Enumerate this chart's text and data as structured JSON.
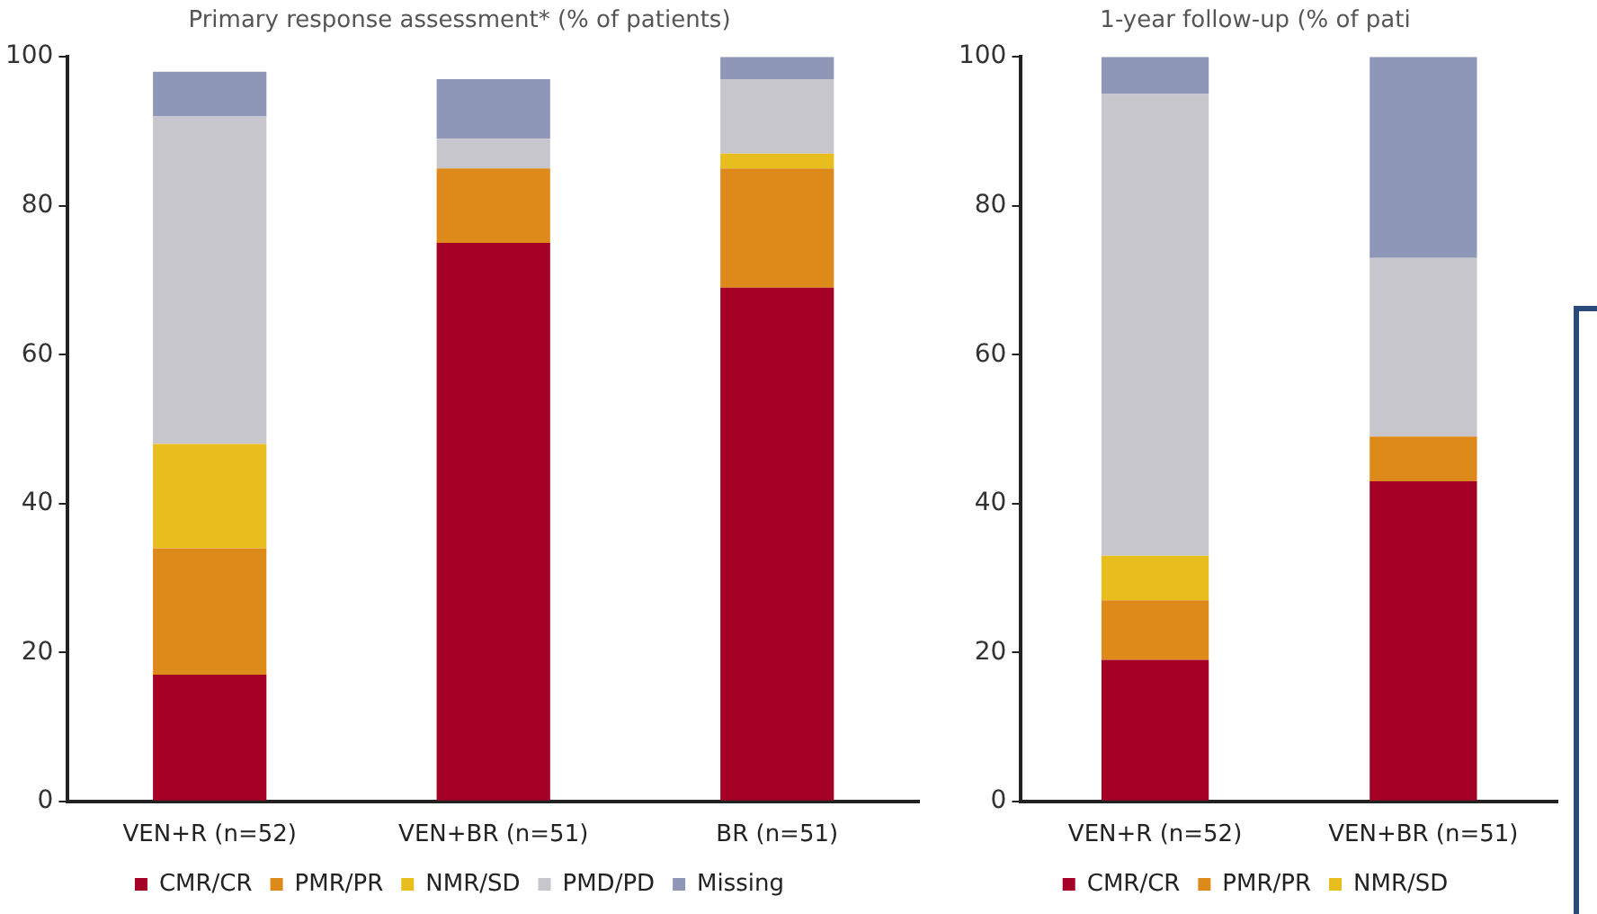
{
  "chart_data": [
    {
      "type": "bar",
      "title": "Primary response assessment* (% of patients)",
      "stacked": true,
      "categories": [
        "VEN+R (n=52)",
        "VEN+BR (n=51)",
        "BR (n=51)"
      ],
      "series": [
        {
          "name": "CMR/CR",
          "color": "#a50026",
          "values": [
            17,
            75,
            69
          ]
        },
        {
          "name": "PMR/PR",
          "color": "#dd8a1a",
          "values": [
            17,
            10,
            16
          ]
        },
        {
          "name": "NMR/SD",
          "color": "#e8bd1e",
          "values": [
            14,
            0,
            2
          ]
        },
        {
          "name": "PMD/PD",
          "color": "#c6c6cc",
          "values": [
            44,
            4,
            10
          ]
        },
        {
          "name": "Missing",
          "color": "#8e97b8",
          "values": [
            6,
            8,
            3
          ]
        }
      ],
      "ylim": [
        0,
        100
      ],
      "yticks": [
        0,
        20,
        40,
        60,
        80,
        100
      ],
      "grid": false,
      "legend": "bottom"
    },
    {
      "type": "bar",
      "title": "1-year follow-up (% of pati",
      "stacked": true,
      "categories": [
        "VEN+R (n=52)",
        "VEN+BR (n=51)"
      ],
      "series": [
        {
          "name": "CMR/CR",
          "color": "#a50026",
          "values": [
            19,
            43
          ]
        },
        {
          "name": "PMR/PR",
          "color": "#dd8a1a",
          "values": [
            8,
            6
          ]
        },
        {
          "name": "NMR/SD",
          "color": "#e8bd1e",
          "values": [
            6,
            0
          ]
        },
        {
          "color": "#c6c6cc",
          "values": [
            62,
            24
          ]
        },
        {
          "color": "#8e97b8",
          "values": [
            5,
            27
          ]
        }
      ],
      "ylim": [
        0,
        100
      ],
      "yticks": [
        0,
        20,
        40,
        60,
        80,
        100
      ],
      "grid": false,
      "legend": "bottom"
    }
  ]
}
